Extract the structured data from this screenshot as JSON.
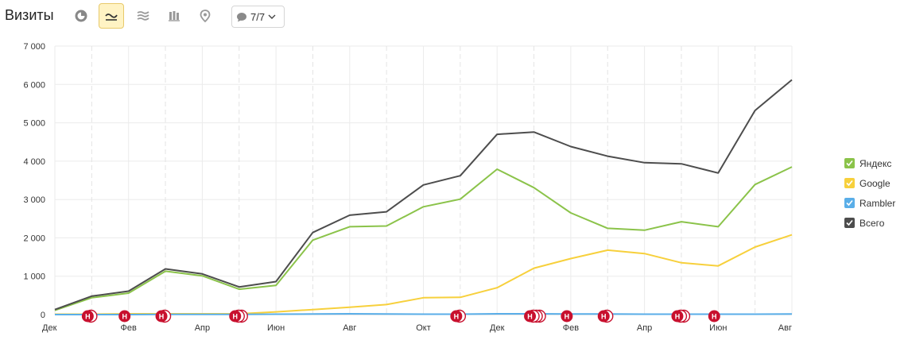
{
  "toolbar": {
    "title": "Визиты",
    "buttons": [
      {
        "name": "pie-chart-icon",
        "active": false
      },
      {
        "name": "line-chart-icon",
        "active": true
      },
      {
        "name": "area-chart-icon",
        "active": false
      },
      {
        "name": "bar-chart-icon",
        "active": false
      },
      {
        "name": "map-pin-icon",
        "active": false
      }
    ],
    "comments_filter": "7/7"
  },
  "chart_data": {
    "type": "line",
    "title": "",
    "xlabel": "",
    "ylabel": "",
    "ylim": [
      0,
      7000
    ],
    "yticks": [
      0,
      1000,
      2000,
      3000,
      4000,
      5000,
      6000,
      7000
    ],
    "ytick_labels": [
      "0",
      "1 000",
      "2 000",
      "3 000",
      "4 000",
      "5 000",
      "6 000",
      "7 000"
    ],
    "x": [
      "2012-12",
      "2013-01",
      "2013-02",
      "2013-03",
      "2013-04",
      "2013-05",
      "2013-06",
      "2013-07",
      "2013-08",
      "2013-09",
      "2013-10",
      "2013-11",
      "2013-12",
      "2014-01",
      "2014-02",
      "2014-03",
      "2014-04",
      "2014-05",
      "2014-06",
      "2014-07",
      "2014-08"
    ],
    "xtick_labels": [
      "Дек",
      "Фев",
      "Апр",
      "Июн",
      "Авг",
      "Окт",
      "Дек",
      "Фев",
      "Апр",
      "Июн",
      "Авг"
    ],
    "xtick_positions": [
      "2012-12",
      "2013-02",
      "2013-04",
      "2013-06",
      "2013-08",
      "2013-10",
      "2013-12",
      "2014-02",
      "2014-04",
      "2014-06",
      "2014-08"
    ],
    "grid": true,
    "legend_position": "right",
    "series": [
      {
        "name": "Яндекс",
        "color": "#8bc34a",
        "values": [
          110,
          440,
          560,
          1130,
          1010,
          660,
          760,
          1940,
          2290,
          2310,
          2810,
          3010,
          3790,
          3310,
          2650,
          2250,
          2200,
          2420,
          2290,
          3390,
          3850
        ]
      },
      {
        "name": "Google",
        "color": "#f7d03c",
        "values": [
          10,
          10,
          20,
          20,
          20,
          20,
          70,
          130,
          190,
          260,
          440,
          450,
          700,
          1210,
          1460,
          1680,
          1590,
          1350,
          1270,
          1760,
          2080
        ]
      },
      {
        "name": "Rambler",
        "color": "#5aaee8",
        "values": [
          0,
          0,
          0,
          5,
          5,
          5,
          10,
          15,
          20,
          15,
          10,
          10,
          20,
          20,
          15,
          15,
          10,
          10,
          10,
          10,
          15
        ]
      },
      {
        "name": "Всего",
        "color": "#4d4d4d",
        "values": [
          130,
          480,
          610,
          1190,
          1060,
          720,
          860,
          2140,
          2590,
          2680,
          3380,
          3620,
          4700,
          4760,
          4380,
          4130,
          3960,
          3930,
          3690,
          5320,
          6120
        ]
      }
    ],
    "annotations": [
      {
        "label": "Н",
        "x": "2013-01",
        "count": 2
      },
      {
        "label": "Н",
        "x": "2013-02",
        "count": 1
      },
      {
        "label": "Н",
        "x": "2013-03",
        "count": 2
      },
      {
        "label": "Н",
        "x": "2013-05",
        "count": 3
      },
      {
        "label": "Н",
        "x": "2013-11",
        "count": 2
      },
      {
        "label": "Н",
        "x": "2014-01",
        "count": 4
      },
      {
        "label": "Н",
        "x": "2014-02",
        "count": 1
      },
      {
        "label": "Н",
        "x": "2014-03",
        "count": 2
      },
      {
        "label": "Н",
        "x": "2014-05",
        "count": 3
      },
      {
        "label": "Н",
        "x": "2014-06",
        "count": 1
      }
    ]
  }
}
